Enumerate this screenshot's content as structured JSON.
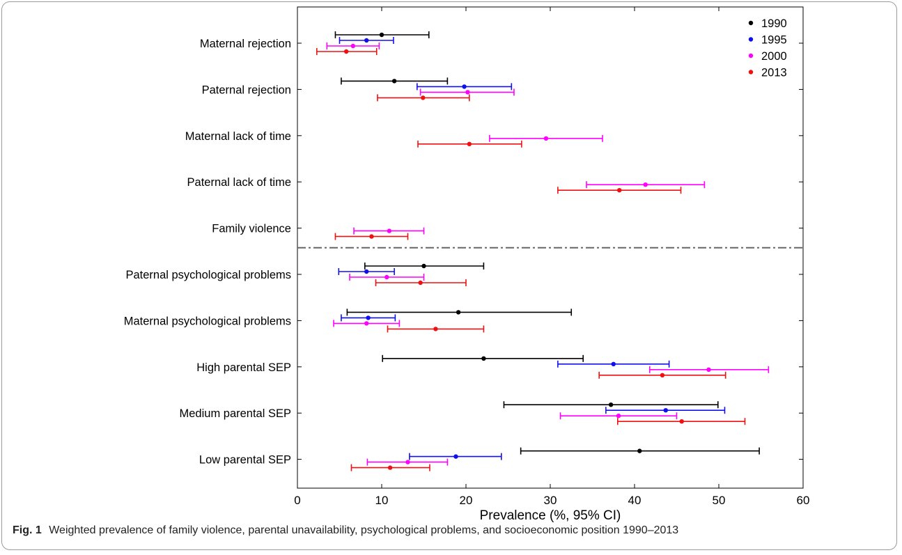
{
  "chart_data": {
    "type": "forest",
    "xlabel": "Prevalence (%, 95% CI)",
    "xlim": [
      0,
      60
    ],
    "xticks": [
      0,
      10,
      20,
      30,
      40,
      50,
      60
    ],
    "categories": [
      "Maternal rejection",
      "Paternal rejection",
      "Maternal lack of time",
      "Paternal lack of time",
      "Family violence",
      "Paternal psychological problems",
      "Maternal psychological problems",
      "High parental SEP",
      "Medium parental SEP",
      "Low parental SEP"
    ],
    "separator_after_category": "Family violence",
    "legend_position": "top-right",
    "series": [
      {
        "name": "1990",
        "color": "#000000",
        "points": [
          {
            "category": "Maternal rejection",
            "estimate": 10.0,
            "lower": 4.5,
            "upper": 15.6
          },
          {
            "category": "Paternal rejection",
            "estimate": 11.5,
            "lower": 5.2,
            "upper": 17.8
          },
          {
            "category": "Paternal psychological problems",
            "estimate": 15.0,
            "lower": 8.0,
            "upper": 22.1
          },
          {
            "category": "Maternal psychological problems",
            "estimate": 19.1,
            "lower": 5.9,
            "upper": 32.5
          },
          {
            "category": "High parental SEP",
            "estimate": 22.1,
            "lower": 10.1,
            "upper": 33.9
          },
          {
            "category": "Medium parental SEP",
            "estimate": 37.2,
            "lower": 24.5,
            "upper": 49.9
          },
          {
            "category": "Low parental SEP",
            "estimate": 40.6,
            "lower": 26.5,
            "upper": 54.8
          }
        ]
      },
      {
        "name": "1995",
        "color": "#1010ee",
        "points": [
          {
            "category": "Maternal rejection",
            "estimate": 8.2,
            "lower": 5.0,
            "upper": 11.4
          },
          {
            "category": "Paternal rejection",
            "estimate": 19.8,
            "lower": 14.2,
            "upper": 25.4
          },
          {
            "category": "Paternal psychological problems",
            "estimate": 8.2,
            "lower": 4.9,
            "upper": 11.5
          },
          {
            "category": "Maternal psychological problems",
            "estimate": 8.4,
            "lower": 5.2,
            "upper": 11.6
          },
          {
            "category": "High parental SEP",
            "estimate": 37.5,
            "lower": 30.9,
            "upper": 44.1
          },
          {
            "category": "Medium parental SEP",
            "estimate": 43.7,
            "lower": 36.6,
            "upper": 50.7
          },
          {
            "category": "Low parental SEP",
            "estimate": 18.8,
            "lower": 13.3,
            "upper": 24.2
          }
        ]
      },
      {
        "name": "2000",
        "color": "#ff00ff",
        "points": [
          {
            "category": "Maternal rejection",
            "estimate": 6.6,
            "lower": 3.5,
            "upper": 9.7
          },
          {
            "category": "Paternal rejection",
            "estimate": 20.2,
            "lower": 14.6,
            "upper": 25.7
          },
          {
            "category": "Maternal lack of time",
            "estimate": 29.5,
            "lower": 22.8,
            "upper": 36.2
          },
          {
            "category": "Paternal lack of time",
            "estimate": 41.3,
            "lower": 34.3,
            "upper": 48.3
          },
          {
            "category": "Family violence",
            "estimate": 10.9,
            "lower": 6.7,
            "upper": 15.0
          },
          {
            "category": "Paternal psychological problems",
            "estimate": 10.6,
            "lower": 6.2,
            "upper": 15.0
          },
          {
            "category": "Maternal psychological problems",
            "estimate": 8.2,
            "lower": 4.3,
            "upper": 12.1
          },
          {
            "category": "High parental SEP",
            "estimate": 48.8,
            "lower": 41.8,
            "upper": 55.9
          },
          {
            "category": "Medium parental SEP",
            "estimate": 38.1,
            "lower": 31.2,
            "upper": 45.0
          },
          {
            "category": "Low parental SEP",
            "estimate": 13.1,
            "lower": 8.3,
            "upper": 17.8
          }
        ]
      },
      {
        "name": "2013",
        "color": "#ee1111",
        "points": [
          {
            "category": "Maternal rejection",
            "estimate": 5.8,
            "lower": 2.3,
            "upper": 9.4
          },
          {
            "category": "Paternal rejection",
            "estimate": 14.9,
            "lower": 9.5,
            "upper": 20.4
          },
          {
            "category": "Maternal lack of time",
            "estimate": 20.4,
            "lower": 14.3,
            "upper": 26.6
          },
          {
            "category": "Paternal lack of time",
            "estimate": 38.2,
            "lower": 30.9,
            "upper": 45.5
          },
          {
            "category": "Family violence",
            "estimate": 8.8,
            "lower": 4.5,
            "upper": 13.1
          },
          {
            "category": "Paternal psychological problems",
            "estimate": 14.6,
            "lower": 9.3,
            "upper": 20.0
          },
          {
            "category": "Maternal psychological problems",
            "estimate": 16.4,
            "lower": 10.7,
            "upper": 22.1
          },
          {
            "category": "High parental SEP",
            "estimate": 43.3,
            "lower": 35.8,
            "upper": 50.8
          },
          {
            "category": "Medium parental SEP",
            "estimate": 45.6,
            "lower": 38.0,
            "upper": 53.1
          },
          {
            "category": "Low parental SEP",
            "estimate": 11.0,
            "lower": 6.4,
            "upper": 15.7
          }
        ]
      }
    ]
  },
  "caption": {
    "label": "Fig. 1",
    "text": "Weighted prevalence of family violence, parental unavailability, psychological problems, and socioeconomic position 1990–2013"
  }
}
